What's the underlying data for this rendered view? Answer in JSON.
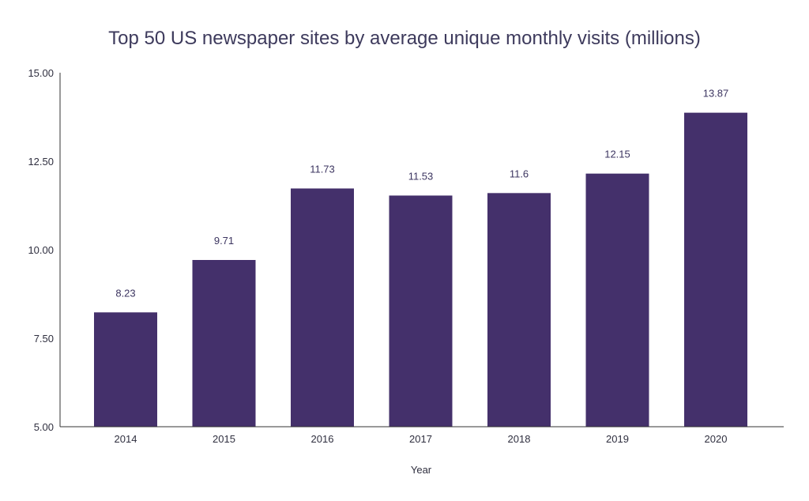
{
  "chart_data": {
    "type": "bar",
    "title": "Top 50 US newspaper sites by average unique monthly visits (millions)",
    "xlabel": "Year",
    "ylabel": "",
    "categories": [
      "2014",
      "2015",
      "2016",
      "2017",
      "2018",
      "2019",
      "2020"
    ],
    "values": [
      8.23,
      9.71,
      11.73,
      11.53,
      11.6,
      12.15,
      13.87
    ],
    "value_labels": [
      "8.23",
      "9.71",
      "11.73",
      "11.53",
      "11.6",
      "12.15",
      "13.87"
    ],
    "ylim": [
      5,
      15
    ],
    "yticks": [
      5,
      7.5,
      10,
      12.5,
      15
    ],
    "ytick_labels": [
      "5.00",
      "7.50",
      "10.00",
      "12.50",
      "15.00"
    ],
    "grid": false,
    "legend": "none",
    "bar_color": "#44306b"
  }
}
